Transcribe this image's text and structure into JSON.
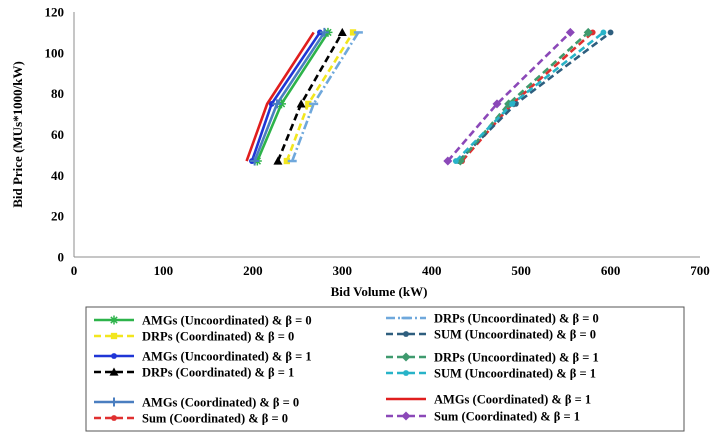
{
  "chart_data": {
    "type": "line",
    "title": "",
    "xlabel": "Bid Volume (kW)",
    "ylabel": "Bid Price (MUs*1000/kW)",
    "xlim": [
      0,
      700
    ],
    "ylim": [
      0,
      120
    ],
    "xticks": [
      "0",
      "100",
      "200",
      "300",
      "400",
      "500",
      "600",
      "700"
    ],
    "yticks": [
      "0",
      "20",
      "40",
      "60",
      "80",
      "100",
      "120"
    ],
    "grid": false,
    "legend_position": "bottom",
    "series": [
      {
        "name": "AMGs (Uncoordinated) &  β = 0",
        "color": "#2DB34A",
        "dash": "solid",
        "marker": "star",
        "x": [
          205,
          232,
          284
        ],
        "y": [
          47,
          75,
          110
        ]
      },
      {
        "name": "DRPs (Coordinated) & β = 0",
        "color": "#F2E61E",
        "dash": "dashed",
        "marker": "square",
        "x": [
          238,
          262,
          312
        ],
        "y": [
          47,
          75,
          110
        ]
      },
      {
        "name": "AMGs (Uncoordinated) &  β = 1",
        "color": "#1F35D6",
        "dash": "solid",
        "marker": "circle",
        "x": [
          199,
          221,
          275
        ],
        "y": [
          47,
          75,
          110
        ]
      },
      {
        "name": "DRPs (Coordinated) & β = 1",
        "color": "#000000",
        "dash": "dashed",
        "marker": "triangle",
        "x": [
          228,
          254,
          300
        ],
        "y": [
          47,
          75,
          110
        ]
      },
      {
        "name": "AMGs (Coordinated) & β = 0",
        "color": "#4A7EC0",
        "dash": "solid",
        "marker": "plus",
        "x": [
          202,
          227,
          280
        ],
        "y": [
          47,
          75,
          110
        ]
      },
      {
        "name": "Sum (Coordinated) & β = 0",
        "color": "#E03030",
        "dash": "dashed",
        "marker": "circle",
        "x": [
          434,
          490,
          580
        ],
        "y": [
          47,
          75,
          110
        ]
      },
      {
        "name": "DRPs (Uncoordinated) &  β = 0",
        "color": "#6FA8DC",
        "dash": "dashdot",
        "marker": "dash",
        "x": [
          244,
          268,
          318
        ],
        "y": [
          47,
          75,
          110
        ]
      },
      {
        "name": "SUM (Uncoordinated) &  β = 0",
        "color": "#2E5E7E",
        "dash": "dashed",
        "marker": "circle",
        "x": [
          430,
          494,
          600
        ],
        "y": [
          47,
          75,
          110
        ]
      },
      {
        "name": "DRPs (Uncoordinated) &  β = 1",
        "color": "#3F9A6E",
        "dash": "dashed",
        "marker": "diamond",
        "x": [
          432,
          486,
          575
        ],
        "y": [
          47,
          75,
          110
        ]
      },
      {
        "name": "SUM (Uncoordinated) &  β = 1",
        "color": "#28B3C8",
        "dash": "dashed",
        "marker": "circle",
        "x": [
          427,
          490,
          592
        ],
        "y": [
          47,
          75,
          110
        ]
      },
      {
        "name": "AMGs (Coordinated) & β = 1",
        "color": "#E01E1E",
        "dash": "solid",
        "marker": "none",
        "x": [
          193,
          216,
          268
        ],
        "y": [
          47,
          75,
          110
        ]
      },
      {
        "name": "Sum (Coordinated) & β = 1",
        "color": "#8B48B8",
        "dash": "dashed",
        "marker": "diamond",
        "x": [
          418,
          473,
          555
        ],
        "y": [
          47,
          75,
          110
        ]
      }
    ]
  }
}
